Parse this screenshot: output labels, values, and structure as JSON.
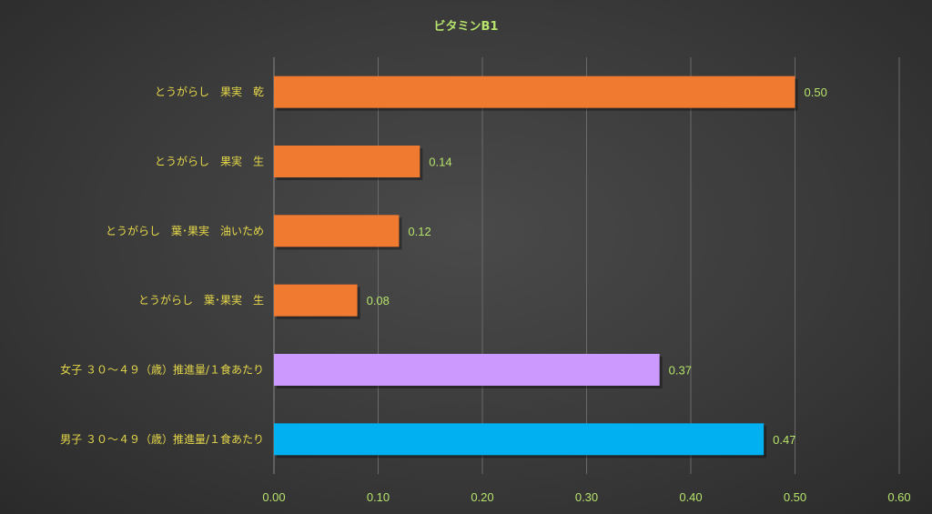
{
  "chart_data": {
    "type": "bar",
    "orientation": "horizontal",
    "title": "ビタミンB1",
    "categories": [
      "とうがらし　果実　乾",
      "とうがらし　果実　生",
      "とうがらし　葉･果実　油いため",
      "とうがらし　葉･果実　生",
      "女子 ３０～４９（歳）推進量/１食あたり",
      "男子 ３０～４９（歳）推進量/１食あたり"
    ],
    "values": [
      0.5,
      0.14,
      0.12,
      0.08,
      0.37,
      0.47
    ],
    "data_labels": [
      "0.50",
      "0.14",
      "0.12",
      "0.08",
      "0.37",
      "0.47"
    ],
    "bar_colors": [
      "#f07a2f",
      "#f07a2f",
      "#f07a2f",
      "#f07a2f",
      "#cc99ff",
      "#00b0f0"
    ],
    "xlim": [
      0,
      0.6
    ],
    "x_ticks": [
      "0.00",
      "0.10",
      "0.20",
      "0.30",
      "0.40",
      "0.50",
      "0.60"
    ],
    "grid": "vertical",
    "legend": "none"
  },
  "colors": {
    "title": "#b6e36b",
    "category_label": "#e6d84a",
    "tick_label": "#b6e36b",
    "data_label": "#b6e36b",
    "grid": "#6a6a6a"
  }
}
